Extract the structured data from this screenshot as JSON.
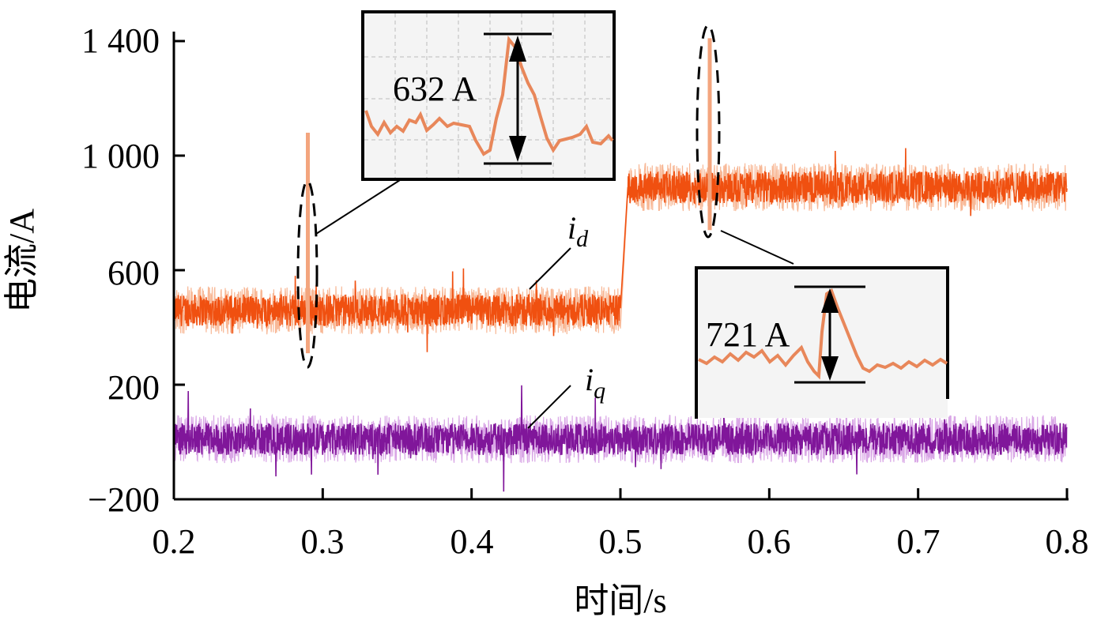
{
  "chart_data": {
    "type": "line",
    "title": "",
    "xlabel": "时间/s",
    "ylabel": "电流/A",
    "xlim": [
      0.2,
      0.8
    ],
    "ylim": [
      -200,
      1400
    ],
    "xticks": [
      "0.2",
      "0.3",
      "0.4",
      "0.5",
      "0.6",
      "0.7",
      "0.8"
    ],
    "xtick_values": [
      0.2,
      0.3,
      0.4,
      0.5,
      0.6,
      0.7,
      0.8
    ],
    "yticks": [
      "1 400",
      "1 000",
      "600",
      "200",
      "−200"
    ],
    "ytick_values": [
      1400,
      1000,
      600,
      200,
      -200
    ],
    "grid": false,
    "series": [
      {
        "name": "i_d",
        "label_main": "i",
        "label_sub": "d",
        "color": "#f05010",
        "segments": [
          {
            "x": [
              0.2,
              0.5
            ],
            "mean": 460
          },
          {
            "x": [
              0.505,
              0.8
            ],
            "mean": 890
          }
        ],
        "noise_amplitude": 70,
        "spikes": [
          {
            "x": 0.29,
            "value": 1080
          },
          {
            "x": 0.56,
            "value": 1410
          }
        ]
      },
      {
        "name": "i_q",
        "label_main": "i",
        "label_sub": "q",
        "color": "#80169a",
        "segments": [
          {
            "x": [
              0.2,
              0.8
            ],
            "mean": 10
          }
        ],
        "noise_amplitude": 70
      }
    ],
    "annotations": [
      {
        "text": "632 A",
        "x": 0.29,
        "note": "inset zoom of i_d peak"
      },
      {
        "text": "721 A",
        "x": 0.56,
        "note": "inset zoom of i_d peak"
      }
    ]
  }
}
